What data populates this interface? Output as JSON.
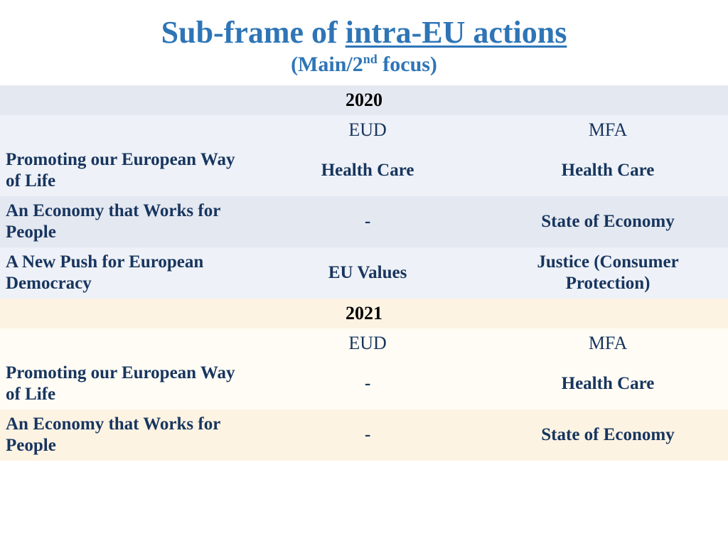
{
  "title": {
    "prefix": "Sub-frame of ",
    "underlined": "intra-EU actions",
    "subtitle_html": "(Main/2<sup>nd</sup> focus)"
  },
  "colors": {
    "title_color": "#2e75b6",
    "text_color": "#17355e",
    "section2020_header_bg": "#e4e8f1",
    "section2020_row_bg": "#eef1f7",
    "section2021_header_bg": "#fdf3e3",
    "section2021_row_bg": "#fffcf5",
    "page_bg": "#ffffff"
  },
  "typography": {
    "title_fontsize_pt": 33,
    "subtitle_fontsize_pt": 22,
    "cell_fontsize_pt": 19,
    "font_family": "Times New Roman"
  },
  "table": {
    "type": "table",
    "columns": [
      "",
      "EUD",
      "MFA"
    ],
    "column_widths_pct": [
      34,
      33,
      33
    ],
    "sections": [
      {
        "year": "2020",
        "header_bg": "#e4e8f1",
        "row_bg": "#eef1f7",
        "alt_row_bg": "#e4e8f1",
        "headers": {
          "col1": "EUD",
          "col2": "MFA"
        },
        "rows": [
          {
            "label": "Promoting our European Way of Life",
            "eud": "Health Care",
            "mfa": "Health Care"
          },
          {
            "label": "An Economy that Works for People",
            "eud": "-",
            "mfa": "State of Economy"
          },
          {
            "label": "A New Push for European Democracy",
            "eud": "EU Values",
            "mfa": "Justice (Consumer Protection)"
          }
        ]
      },
      {
        "year": "2021",
        "header_bg": "#fdf3e3",
        "row_bg": "#fffcf5",
        "alt_row_bg": "#fdf3e3",
        "headers": {
          "col1": "EUD",
          "col2": "MFA"
        },
        "rows": [
          {
            "label": "Promoting our European Way of Life",
            "eud": "-",
            "mfa": "Health Care"
          },
          {
            "label": "An Economy that Works for People",
            "eud": "-",
            "mfa": "State of Economy"
          }
        ]
      }
    ]
  }
}
